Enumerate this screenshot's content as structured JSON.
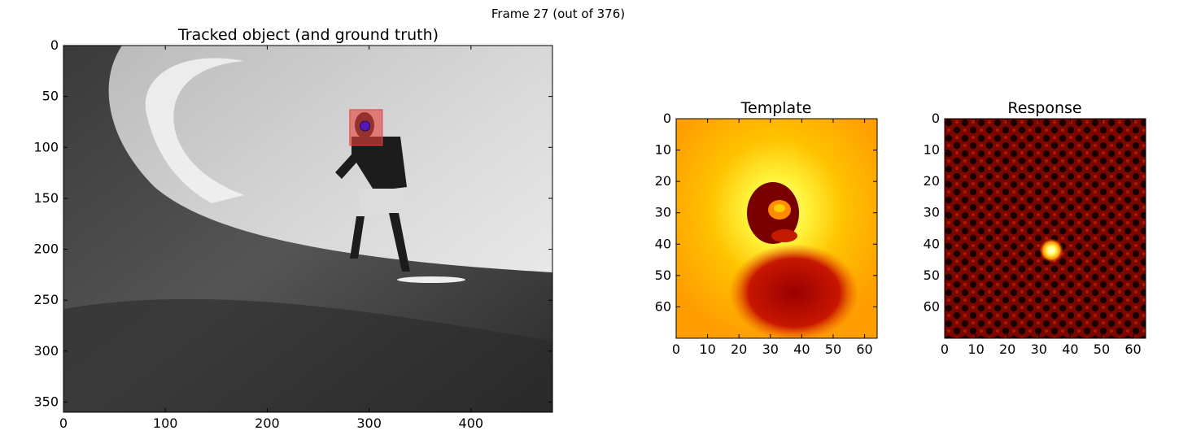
{
  "suptitle": "Frame 27 (out of 376)",
  "chart_data": [
    {
      "type": "image",
      "title": "Tracked object (and ground truth)",
      "xlabel": "",
      "ylabel": "",
      "xlim": [
        0,
        480
      ],
      "ylim": [
        360,
        0
      ],
      "xticks": [
        0,
        100,
        200,
        300,
        400
      ],
      "yticks": [
        0,
        50,
        100,
        150,
        200,
        250,
        300,
        350
      ],
      "image": "grayscale video frame: surfer on a breaking wave",
      "overlays": [
        {
          "kind": "rect",
          "label": "tracked object",
          "x": 281,
          "y": 63,
          "width": 32,
          "height": 35,
          "color": "#e8413a",
          "alpha": 0.6
        },
        {
          "kind": "point",
          "label": "ground truth",
          "x": 296,
          "y": 79,
          "color": "#5319b8"
        }
      ]
    },
    {
      "type": "heatmap",
      "title": "Template",
      "xlabel": "",
      "ylabel": "",
      "colormap": "hot",
      "xlim": [
        0,
        64
      ],
      "ylim": [
        70,
        0
      ],
      "xticks": [
        0,
        10,
        20,
        30,
        40,
        50,
        60
      ],
      "yticks": [
        0,
        10,
        20,
        30,
        40,
        50,
        60
      ]
    },
    {
      "type": "heatmap",
      "title": "Response",
      "xlabel": "",
      "ylabel": "",
      "colormap": "hot",
      "xlim": [
        0,
        64
      ],
      "ylim": [
        70,
        0
      ],
      "xticks": [
        0,
        10,
        20,
        30,
        40,
        50,
        60
      ],
      "yticks": [
        0,
        10,
        20,
        30,
        40,
        50,
        60
      ],
      "peak": {
        "x": 34,
        "y": 42
      }
    }
  ]
}
